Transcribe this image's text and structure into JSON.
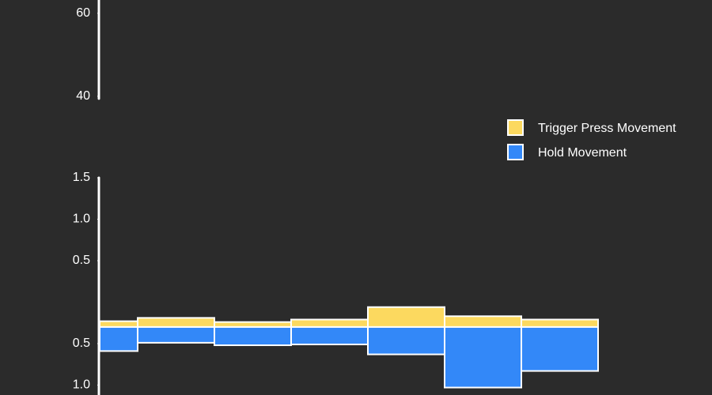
{
  "chart_data": [
    {
      "type": "line",
      "ylim": [
        39.4,
        63.2
      ],
      "yticks": [
        40,
        60
      ]
    },
    {
      "type": "bar",
      "categories": [
        null,
        null,
        null,
        null,
        null,
        null,
        null
      ],
      "ylim": [
        -1.12,
        1.5
      ],
      "bar_base": -0.3,
      "yticks": [
        {
          "value": 1.5,
          "label": "1.5"
        },
        {
          "value": 1.0,
          "label": "1.0"
        },
        {
          "value": 0.5,
          "label": "0.5"
        },
        {
          "value": -0.5,
          "label": "0.5"
        },
        {
          "value": -1.0,
          "label": "1.0"
        }
      ],
      "legend": "right",
      "edgecolor": "#ffffff",
      "series": [
        {
          "name": "Trigger Press Movement",
          "color": "#fcd95f",
          "values": [
            -0.23,
            -0.19,
            -0.24,
            -0.21,
            -0.06,
            -0.17,
            -0.21
          ]
        },
        {
          "name": "Hold Movement",
          "color": "#3388f8",
          "values": [
            -0.59,
            -0.49,
            -0.52,
            -0.51,
            -0.63,
            -1.03,
            -0.83
          ]
        }
      ]
    }
  ]
}
